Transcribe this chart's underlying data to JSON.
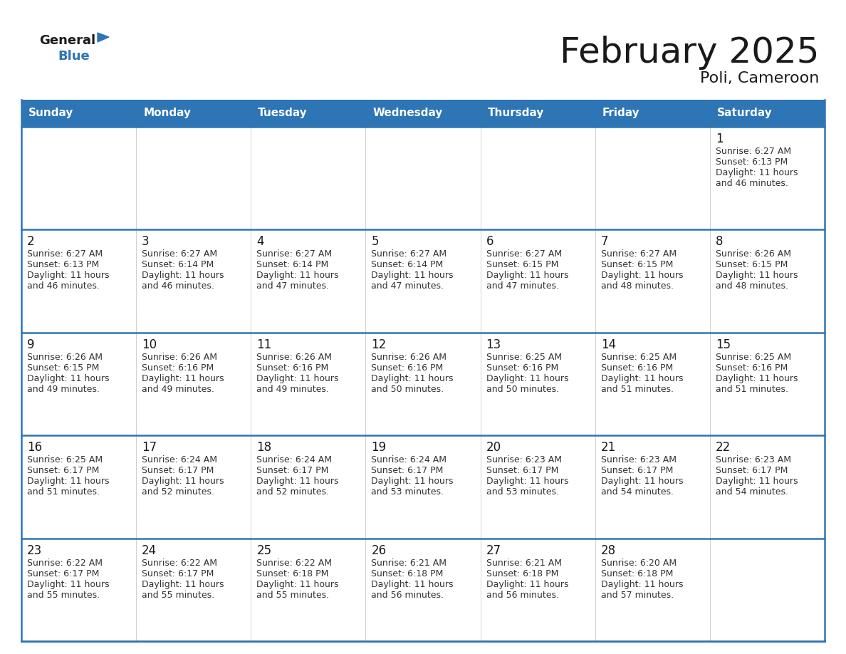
{
  "title": "February 2025",
  "subtitle": "Poli, Cameroon",
  "header_bg": "#2E75B6",
  "header_text_color": "#FFFFFF",
  "cell_bg": "#EFEFEF",
  "border_color": "#2E75B6",
  "row_line_color": "#2E75B6",
  "day_num_color": "#1a1a1a",
  "text_color": "#333333",
  "days_of_week": [
    "Sunday",
    "Monday",
    "Tuesday",
    "Wednesday",
    "Thursday",
    "Friday",
    "Saturday"
  ],
  "calendar_data": [
    [
      null,
      null,
      null,
      null,
      null,
      null,
      {
        "day": 1,
        "sunrise": "6:27 AM",
        "sunset": "6:13 PM",
        "daylight": "11 hours and 46 minutes."
      }
    ],
    [
      {
        "day": 2,
        "sunrise": "6:27 AM",
        "sunset": "6:13 PM",
        "daylight": "11 hours and 46 minutes."
      },
      {
        "day": 3,
        "sunrise": "6:27 AM",
        "sunset": "6:14 PM",
        "daylight": "11 hours and 46 minutes."
      },
      {
        "day": 4,
        "sunrise": "6:27 AM",
        "sunset": "6:14 PM",
        "daylight": "11 hours and 47 minutes."
      },
      {
        "day": 5,
        "sunrise": "6:27 AM",
        "sunset": "6:14 PM",
        "daylight": "11 hours and 47 minutes."
      },
      {
        "day": 6,
        "sunrise": "6:27 AM",
        "sunset": "6:15 PM",
        "daylight": "11 hours and 47 minutes."
      },
      {
        "day": 7,
        "sunrise": "6:27 AM",
        "sunset": "6:15 PM",
        "daylight": "11 hours and 48 minutes."
      },
      {
        "day": 8,
        "sunrise": "6:26 AM",
        "sunset": "6:15 PM",
        "daylight": "11 hours and 48 minutes."
      }
    ],
    [
      {
        "day": 9,
        "sunrise": "6:26 AM",
        "sunset": "6:15 PM",
        "daylight": "11 hours and 49 minutes."
      },
      {
        "day": 10,
        "sunrise": "6:26 AM",
        "sunset": "6:16 PM",
        "daylight": "11 hours and 49 minutes."
      },
      {
        "day": 11,
        "sunrise": "6:26 AM",
        "sunset": "6:16 PM",
        "daylight": "11 hours and 49 minutes."
      },
      {
        "day": 12,
        "sunrise": "6:26 AM",
        "sunset": "6:16 PM",
        "daylight": "11 hours and 50 minutes."
      },
      {
        "day": 13,
        "sunrise": "6:25 AM",
        "sunset": "6:16 PM",
        "daylight": "11 hours and 50 minutes."
      },
      {
        "day": 14,
        "sunrise": "6:25 AM",
        "sunset": "6:16 PM",
        "daylight": "11 hours and 51 minutes."
      },
      {
        "day": 15,
        "sunrise": "6:25 AM",
        "sunset": "6:16 PM",
        "daylight": "11 hours and 51 minutes."
      }
    ],
    [
      {
        "day": 16,
        "sunrise": "6:25 AM",
        "sunset": "6:17 PM",
        "daylight": "11 hours and 51 minutes."
      },
      {
        "day": 17,
        "sunrise": "6:24 AM",
        "sunset": "6:17 PM",
        "daylight": "11 hours and 52 minutes."
      },
      {
        "day": 18,
        "sunrise": "6:24 AM",
        "sunset": "6:17 PM",
        "daylight": "11 hours and 52 minutes."
      },
      {
        "day": 19,
        "sunrise": "6:24 AM",
        "sunset": "6:17 PM",
        "daylight": "11 hours and 53 minutes."
      },
      {
        "day": 20,
        "sunrise": "6:23 AM",
        "sunset": "6:17 PM",
        "daylight": "11 hours and 53 minutes."
      },
      {
        "day": 21,
        "sunrise": "6:23 AM",
        "sunset": "6:17 PM",
        "daylight": "11 hours and 54 minutes."
      },
      {
        "day": 22,
        "sunrise": "6:23 AM",
        "sunset": "6:17 PM",
        "daylight": "11 hours and 54 minutes."
      }
    ],
    [
      {
        "day": 23,
        "sunrise": "6:22 AM",
        "sunset": "6:17 PM",
        "daylight": "11 hours and 55 minutes."
      },
      {
        "day": 24,
        "sunrise": "6:22 AM",
        "sunset": "6:17 PM",
        "daylight": "11 hours and 55 minutes."
      },
      {
        "day": 25,
        "sunrise": "6:22 AM",
        "sunset": "6:18 PM",
        "daylight": "11 hours and 55 minutes."
      },
      {
        "day": 26,
        "sunrise": "6:21 AM",
        "sunset": "6:18 PM",
        "daylight": "11 hours and 56 minutes."
      },
      {
        "day": 27,
        "sunrise": "6:21 AM",
        "sunset": "6:18 PM",
        "daylight": "11 hours and 56 minutes."
      },
      {
        "day": 28,
        "sunrise": "6:20 AM",
        "sunset": "6:18 PM",
        "daylight": "11 hours and 57 minutes."
      },
      null
    ]
  ],
  "logo_general_color": "#1a1a1a",
  "logo_blue_color": "#2E75B6"
}
